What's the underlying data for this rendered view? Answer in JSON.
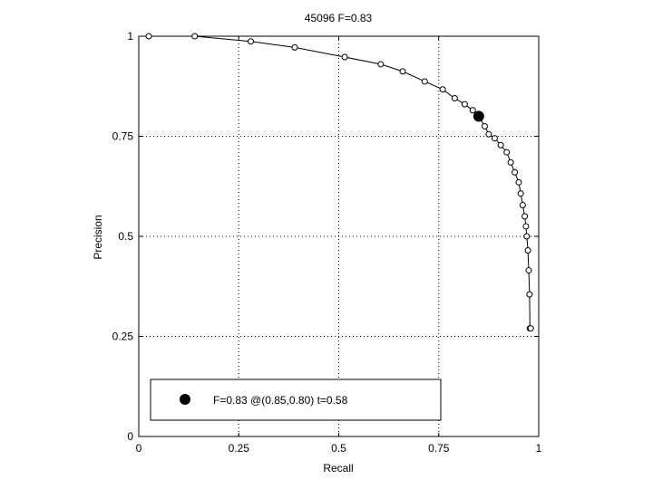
{
  "chart_data": {
    "type": "line",
    "title": "45096 F=0.83",
    "xlabel": "Recall",
    "ylabel": "Precision",
    "xlim": [
      0,
      1
    ],
    "ylim": [
      0,
      1
    ],
    "xticks": [
      "0",
      "0.25",
      "0.5",
      "0.75",
      "1"
    ],
    "yticks": [
      "0",
      "0.25",
      "0.5",
      "0.75",
      "1"
    ],
    "grid": true,
    "series": [
      {
        "name": "",
        "x": [
          0.025,
          0.14,
          0.28,
          0.39,
          0.515,
          0.605,
          0.66,
          0.715,
          0.76,
          0.79,
          0.815,
          0.835,
          0.85,
          0.865,
          0.875,
          0.89,
          0.905,
          0.92,
          0.93,
          0.94,
          0.95,
          0.955,
          0.96,
          0.965,
          0.968,
          0.97,
          0.973,
          0.975,
          0.977,
          0.978,
          0.98
        ],
        "y": [
          1.0,
          1.0,
          0.987,
          0.972,
          0.948,
          0.93,
          0.912,
          0.887,
          0.867,
          0.845,
          0.83,
          0.815,
          0.8,
          0.775,
          0.755,
          0.745,
          0.728,
          0.71,
          0.685,
          0.66,
          0.635,
          0.607,
          0.578,
          0.55,
          0.525,
          0.5,
          0.465,
          0.415,
          0.355,
          0.27,
          0.27
        ]
      }
    ],
    "best_point": {
      "recall": 0.85,
      "precision": 0.8,
      "f": 0.83,
      "t": 0.58
    },
    "legend": {
      "placement": "bottom-left",
      "label": "F=0.83 @(0.85,0.80) t=0.58"
    },
    "colors": {
      "line": "#000000",
      "grid": "#000000",
      "background": "#ffffff"
    }
  }
}
